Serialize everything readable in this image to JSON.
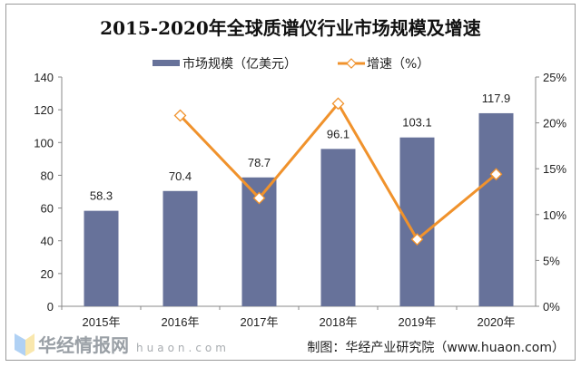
{
  "chart_data": {
    "type": "bar+line",
    "title": "2015-2020年全球质谱仪行业市场规模及增速",
    "categories": [
      "2015年",
      "2016年",
      "2017年",
      "2018年",
      "2019年",
      "2020年"
    ],
    "series": [
      {
        "name": "市场规模（亿美元）",
        "type": "bar",
        "axis": "left",
        "values": [
          58.3,
          70.4,
          78.7,
          96.1,
          103.1,
          117.9
        ],
        "color": "#67729a"
      },
      {
        "name": "增速（%）",
        "type": "line",
        "axis": "right",
        "values": [
          null,
          20.8,
          11.8,
          22.1,
          7.3,
          14.4
        ],
        "color": "#f0922c"
      }
    ],
    "left_axis": {
      "ylim": [
        0,
        140
      ],
      "ticks": [
        "0",
        "20",
        "40",
        "60",
        "80",
        "100",
        "120",
        "140"
      ]
    },
    "right_axis": {
      "ylim": [
        0,
        25
      ],
      "ticks": [
        "0%",
        "5%",
        "10%",
        "15%",
        "20%",
        "25%"
      ]
    },
    "legend": "top",
    "grid": false,
    "source": "制图：华经产业研究院（www.huaon.com）"
  },
  "watermark": {
    "text": "华经情报网",
    "sub": "huaon.com"
  }
}
